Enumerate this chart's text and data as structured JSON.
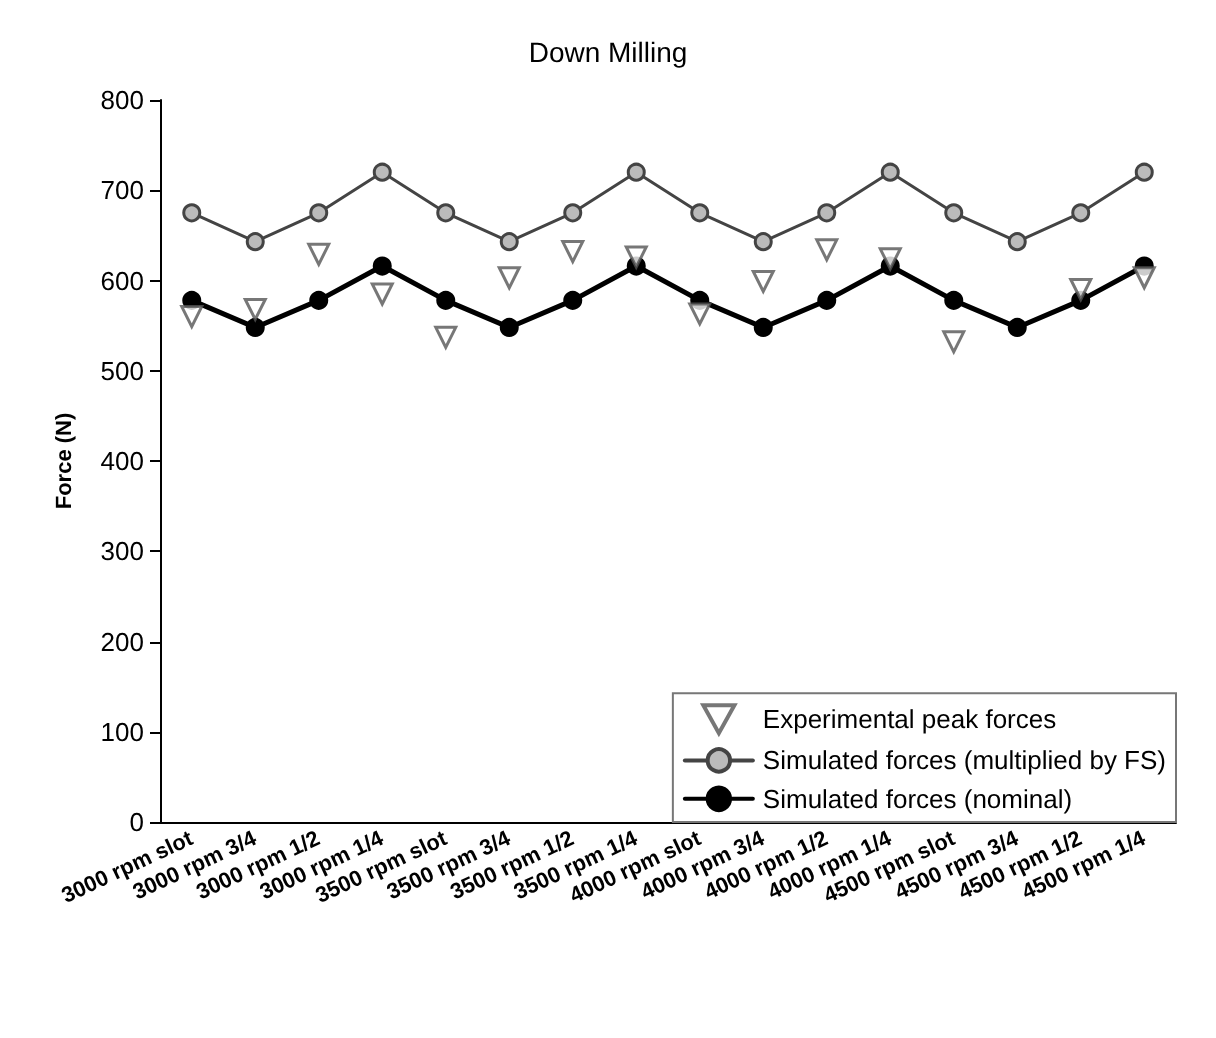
{
  "chart_data": {
    "type": "line",
    "title": "Down Milling",
    "ylabel": "Force (N)",
    "categories": [
      "3000 rpm slot",
      "3000 rpm 3/4",
      "3000 rpm 1/2",
      "3000 rpm 1/4",
      "3500 rpm slot",
      "3500 rpm 3/4",
      "3500 rpm 1/2",
      "3500 rpm 1/4",
      "4000 rpm slot",
      "4000 rpm 3/4",
      "4000 rpm 1/2",
      "4000 rpm 1/4",
      "4500 rpm slot",
      "4500 rpm 3/4",
      "4500 rpm 1/2",
      "4500 rpm 1/4"
    ],
    "series": [
      {
        "name": "Experimental peak forces",
        "type": "scatter",
        "marker": "triangle",
        "color": "#555555",
        "values": [
          560,
          568,
          629,
          585,
          537,
          603,
          632,
          626,
          563,
          599,
          634,
          624,
          532,
          null,
          590,
          603
        ]
      },
      {
        "name": "Simulated forces (multiplied by FS)",
        "type": "line",
        "marker": "circle",
        "color": "#444444",
        "values": [
          675,
          643,
          675,
          720,
          675,
          643,
          675,
          720,
          675,
          643,
          675,
          720,
          675,
          643,
          675,
          720
        ]
      },
      {
        "name": "Simulated forces (nominal)",
        "type": "line",
        "marker": "circle",
        "color": "#000000",
        "values": [
          578,
          548,
          578,
          616,
          578,
          548,
          578,
          616,
          578,
          548,
          578,
          616,
          578,
          548,
          578,
          616
        ]
      }
    ],
    "ylim": [
      0,
      800
    ],
    "yticks": [
      0,
      100,
      200,
      300,
      400,
      500,
      600,
      700,
      800
    ],
    "grid": false,
    "legend": "bottom right",
    "line_style": "solid"
  }
}
